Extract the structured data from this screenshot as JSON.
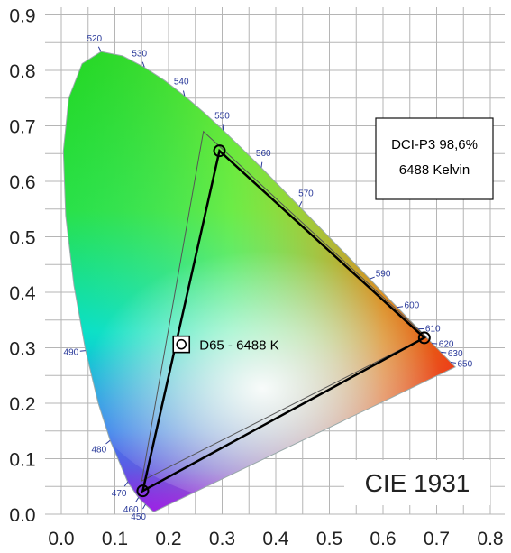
{
  "chart_data": {
    "type": "scatter",
    "title": "CIE 1931",
    "xlim": [
      0,
      0.8
    ],
    "ylim": [
      0,
      0.9
    ],
    "x_ticks": [
      "0.0",
      "0.1",
      "0.2",
      "0.3",
      "0.4",
      "0.5",
      "0.6",
      "0.7",
      "0.8"
    ],
    "y_ticks": [
      "0.0",
      "0.1",
      "0.2",
      "0.3",
      "0.4",
      "0.5",
      "0.6",
      "0.7",
      "0.8",
      "0.9"
    ],
    "grid": true,
    "spectral_locus_labels": [
      {
        "label": "520",
        "x": 0.074,
        "y": 0.834
      },
      {
        "label": "530",
        "x": 0.155,
        "y": 0.806
      },
      {
        "label": "540",
        "x": 0.23,
        "y": 0.754
      },
      {
        "label": "550",
        "x": 0.302,
        "y": 0.692
      },
      {
        "label": "560",
        "x": 0.373,
        "y": 0.625
      },
      {
        "label": "570",
        "x": 0.444,
        "y": 0.555
      },
      {
        "label": "590",
        "x": 0.575,
        "y": 0.424
      },
      {
        "label": "600",
        "x": 0.627,
        "y": 0.373
      },
      {
        "label": "610",
        "x": 0.666,
        "y": 0.334
      },
      {
        "label": "620",
        "x": 0.691,
        "y": 0.308
      },
      {
        "label": "630",
        "x": 0.708,
        "y": 0.292
      },
      {
        "label": "650",
        "x": 0.726,
        "y": 0.274
      },
      {
        "label": "490",
        "x": 0.045,
        "y": 0.295
      },
      {
        "label": "480",
        "x": 0.091,
        "y": 0.133
      },
      {
        "label": "470",
        "x": 0.124,
        "y": 0.058
      },
      {
        "label": "460",
        "x": 0.144,
        "y": 0.03
      },
      {
        "label": "450",
        "x": 0.157,
        "y": 0.018
      }
    ],
    "series": [
      {
        "name": "DCI-P3 98,6%",
        "x": [
          0.295,
          0.677,
          0.152
        ],
        "y": [
          0.655,
          0.318,
          0.042
        ]
      }
    ],
    "reference_triangle": {
      "x": [
        0.265,
        0.68,
        0.15
      ],
      "y": [
        0.69,
        0.32,
        0.06
      ]
    },
    "white_point": {
      "label": "D65 - 6488 K",
      "x": 0.313,
      "y": 0.329
    },
    "info_box": {
      "line1": "DCI-P3 98,6%",
      "line2": "6488 Kelvin"
    },
    "colors": {
      "grid": "#b5b5b5",
      "triangle": "#000000",
      "reference": "#555555",
      "wavelength_labels": "#2a3a9a"
    }
  }
}
